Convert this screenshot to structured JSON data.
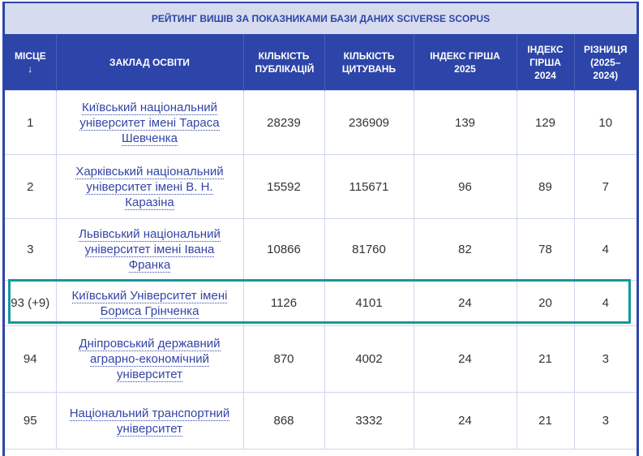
{
  "title": "РЕЙТИНГ ВИШІВ ЗА ПОКАЗНИКАМИ БАЗИ ДАНИХ SCIVERSE SCOPUS",
  "headers": [
    "МІСЦЕ ↓",
    "ЗАКЛАД ОСВІТИ",
    "КІЛЬКІСТЬ ПУБЛІКАЦІЙ",
    "КІЛЬКІСТЬ ЦИТУВАНЬ",
    "ІНДЕКС ГІРША 2025",
    "ІНДЕКС ГІРША 2024",
    "РІЗНИЦЯ (2025–2024)"
  ],
  "highlight_color": "#14999a",
  "rows": [
    {
      "place": "1",
      "name": "Київський національний університет імені Тараса Шевченка",
      "pubs": "28239",
      "cites": "236909",
      "h2025": "139",
      "h2024": "129",
      "diff": "10"
    },
    {
      "place": "2",
      "name": "Харківський національний університет імені В. Н. Каразіна",
      "pubs": "15592",
      "cites": "115671",
      "h2025": "96",
      "h2024": "89",
      "diff": "7"
    },
    {
      "place": "3",
      "name": "Львівський національний університет імені Івана Франка",
      "pubs": "10866",
      "cites": "81760",
      "h2025": "82",
      "h2024": "78",
      "diff": "4"
    },
    {
      "place": "93 (+9)",
      "name": "Київський Університет імені Бориса Грінченка",
      "pubs": "1126",
      "cites": "4101",
      "h2025": "24",
      "h2024": "20",
      "diff": "4",
      "highlighted": true
    },
    {
      "place": "94",
      "name": "Дніпровський державний аграрно-економічний університет",
      "pubs": "870",
      "cites": "4002",
      "h2025": "24",
      "h2024": "21",
      "diff": "3"
    },
    {
      "place": "95",
      "name": "Національний транспортний університет",
      "pubs": "868",
      "cites": "3332",
      "h2025": "24",
      "h2024": "21",
      "diff": "3"
    }
  ]
}
